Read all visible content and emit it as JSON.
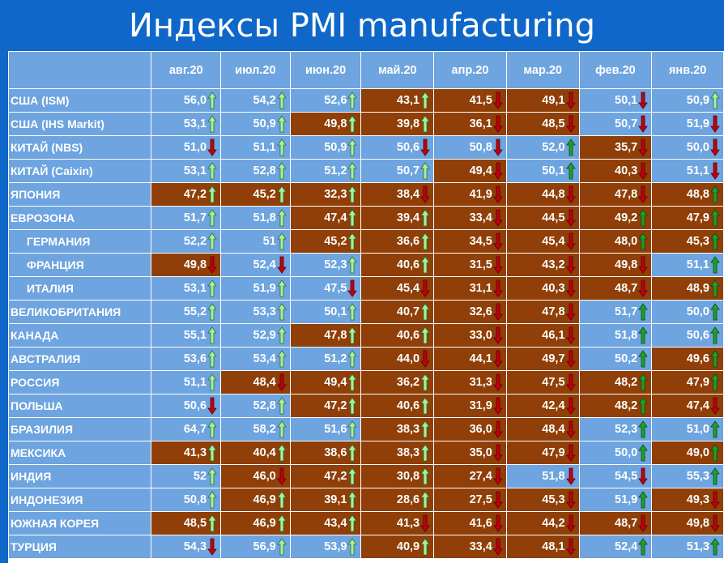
{
  "title": "Индексы PMI manufacturing",
  "columns": [
    "авг.20",
    "июл.20",
    "июн.20",
    "май.20",
    "апр.20",
    "мар.20",
    "фев.20",
    "янв.20"
  ],
  "colors": {
    "header_bg": "#0f67c9",
    "cell_blue": "#6ea4df",
    "cell_brown": "#8f3f07",
    "arrow_up": "#a6f0a0",
    "arrow_down": "#c0000e",
    "arrow_up_dark": "#1fa02a"
  },
  "rows": [
    {
      "country": "США (ISM)",
      "sub": false,
      "cells": [
        {
          "v": "56,0",
          "d": "up",
          "bg": "blue"
        },
        {
          "v": "54,2",
          "d": "up",
          "bg": "blue"
        },
        {
          "v": "52,6",
          "d": "up",
          "bg": "blue"
        },
        {
          "v": "43,1",
          "d": "up",
          "bg": "brown"
        },
        {
          "v": "41,5",
          "d": "down",
          "bg": "brown"
        },
        {
          "v": "49,1",
          "d": "down",
          "bg": "brown"
        },
        {
          "v": "50,1",
          "d": "down",
          "bg": "blue"
        },
        {
          "v": "50,9",
          "d": "up",
          "bg": "blue"
        }
      ]
    },
    {
      "country": "США (IHS Markit)",
      "sub": false,
      "cells": [
        {
          "v": "53,1",
          "d": "up",
          "bg": "blue"
        },
        {
          "v": "50,9",
          "d": "up",
          "bg": "blue"
        },
        {
          "v": "49,8",
          "d": "up",
          "bg": "brown"
        },
        {
          "v": "39,8",
          "d": "up",
          "bg": "brown"
        },
        {
          "v": "36,1",
          "d": "down",
          "bg": "brown"
        },
        {
          "v": "48,5",
          "d": "down",
          "bg": "brown"
        },
        {
          "v": "50,7",
          "d": "down",
          "bg": "blue"
        },
        {
          "v": "51,9",
          "d": "down",
          "bg": "blue"
        }
      ]
    },
    {
      "country": "КИТАЙ (NBS)",
      "sub": false,
      "cells": [
        {
          "v": "51,0",
          "d": "down",
          "bg": "blue"
        },
        {
          "v": "51,1",
          "d": "up",
          "bg": "blue"
        },
        {
          "v": "50,9",
          "d": "up",
          "bg": "blue"
        },
        {
          "v": "50,6",
          "d": "down",
          "bg": "blue"
        },
        {
          "v": "50,8",
          "d": "down",
          "bg": "blue"
        },
        {
          "v": "52,0",
          "d": "upg",
          "bg": "blue"
        },
        {
          "v": "35,7",
          "d": "down",
          "bg": "brown"
        },
        {
          "v": "50,0",
          "d": "down",
          "bg": "blue"
        }
      ]
    },
    {
      "country": "КИТАЙ (Caixin)",
      "sub": false,
      "cells": [
        {
          "v": "53,1",
          "d": "up",
          "bg": "blue"
        },
        {
          "v": "52,8",
          "d": "up",
          "bg": "blue"
        },
        {
          "v": "51,2",
          "d": "up",
          "bg": "blue"
        },
        {
          "v": "50,7",
          "d": "up",
          "bg": "blue"
        },
        {
          "v": "49,4",
          "d": "down",
          "bg": "brown"
        },
        {
          "v": "50,1",
          "d": "upg",
          "bg": "blue"
        },
        {
          "v": "40,3",
          "d": "down",
          "bg": "brown"
        },
        {
          "v": "51,1",
          "d": "down",
          "bg": "blue"
        }
      ]
    },
    {
      "country": "ЯПОНИЯ",
      "sub": false,
      "cells": [
        {
          "v": "47,2",
          "d": "up",
          "bg": "brown"
        },
        {
          "v": "45,2",
          "d": "up",
          "bg": "brown"
        },
        {
          "v": "32,3",
          "d": "up",
          "bg": "brown"
        },
        {
          "v": "38,4",
          "d": "down",
          "bg": "brown"
        },
        {
          "v": "41,9",
          "d": "down",
          "bg": "brown"
        },
        {
          "v": "44,8",
          "d": "down",
          "bg": "brown"
        },
        {
          "v": "47,8",
          "d": "down",
          "bg": "brown"
        },
        {
          "v": "48,8",
          "d": "upg",
          "bg": "brown"
        }
      ]
    },
    {
      "country": "ЕВРОЗОНА",
      "sub": false,
      "cells": [
        {
          "v": "51,7",
          "d": "up",
          "bg": "blue"
        },
        {
          "v": "51,8",
          "d": "up",
          "bg": "blue"
        },
        {
          "v": "47,4",
          "d": "up",
          "bg": "brown"
        },
        {
          "v": "39,4",
          "d": "up",
          "bg": "brown"
        },
        {
          "v": "33,4",
          "d": "down",
          "bg": "brown"
        },
        {
          "v": "44,5",
          "d": "down",
          "bg": "brown"
        },
        {
          "v": "49,2",
          "d": "upg",
          "bg": "brown"
        },
        {
          "v": "47,9",
          "d": "upg",
          "bg": "brown"
        }
      ]
    },
    {
      "country": "ГЕРМАНИЯ",
      "sub": true,
      "cells": [
        {
          "v": "52,2",
          "d": "up",
          "bg": "blue"
        },
        {
          "v": "51",
          "d": "up",
          "bg": "blue"
        },
        {
          "v": "45,2",
          "d": "up",
          "bg": "brown"
        },
        {
          "v": "36,6",
          "d": "up",
          "bg": "brown"
        },
        {
          "v": "34,5",
          "d": "down",
          "bg": "brown"
        },
        {
          "v": "45,4",
          "d": "down",
          "bg": "brown"
        },
        {
          "v": "48,0",
          "d": "upg",
          "bg": "brown"
        },
        {
          "v": "45,3",
          "d": "upg",
          "bg": "brown"
        }
      ]
    },
    {
      "country": "ФРАНЦИЯ",
      "sub": true,
      "cells": [
        {
          "v": "49,8",
          "d": "down",
          "bg": "brown"
        },
        {
          "v": "52,4",
          "d": "down",
          "bg": "blue"
        },
        {
          "v": "52,3",
          "d": "up",
          "bg": "blue"
        },
        {
          "v": "40,6",
          "d": "up",
          "bg": "brown"
        },
        {
          "v": "31,5",
          "d": "down",
          "bg": "brown"
        },
        {
          "v": "43,2",
          "d": "down",
          "bg": "brown"
        },
        {
          "v": "49,8",
          "d": "down",
          "bg": "brown"
        },
        {
          "v": "51,1",
          "d": "upg",
          "bg": "blue"
        }
      ]
    },
    {
      "country": "ИТАЛИЯ",
      "sub": true,
      "cells": [
        {
          "v": "53,1",
          "d": "up",
          "bg": "blue"
        },
        {
          "v": "51,9",
          "d": "up",
          "bg": "blue"
        },
        {
          "v": "47,5",
          "d": "down",
          "bg": "blue"
        },
        {
          "v": "45,4",
          "d": "down",
          "bg": "brown"
        },
        {
          "v": "31,1",
          "d": "down",
          "bg": "brown"
        },
        {
          "v": "40,3",
          "d": "down",
          "bg": "brown"
        },
        {
          "v": "48,7",
          "d": "down",
          "bg": "brown"
        },
        {
          "v": "48,9",
          "d": "upg",
          "bg": "brown"
        }
      ]
    },
    {
      "country": "ВЕЛИКОБРИТАНИЯ",
      "sub": false,
      "cells": [
        {
          "v": "55,2",
          "d": "up",
          "bg": "blue"
        },
        {
          "v": "53,3",
          "d": "up",
          "bg": "blue"
        },
        {
          "v": "50,1",
          "d": "up",
          "bg": "blue"
        },
        {
          "v": "40,7",
          "d": "up",
          "bg": "brown"
        },
        {
          "v": "32,6",
          "d": "down",
          "bg": "brown"
        },
        {
          "v": "47,8",
          "d": "down",
          "bg": "brown"
        },
        {
          "v": "51,7",
          "d": "upg",
          "bg": "blue"
        },
        {
          "v": "50,0",
          "d": "upg",
          "bg": "blue"
        }
      ]
    },
    {
      "country": "КАНАДА",
      "sub": false,
      "cells": [
        {
          "v": "55,1",
          "d": "up",
          "bg": "blue"
        },
        {
          "v": "52,9",
          "d": "up",
          "bg": "blue"
        },
        {
          "v": "47,8",
          "d": "up",
          "bg": "brown"
        },
        {
          "v": "40,6",
          "d": "up",
          "bg": "brown"
        },
        {
          "v": "33,0",
          "d": "down",
          "bg": "brown"
        },
        {
          "v": "46,1",
          "d": "down",
          "bg": "brown"
        },
        {
          "v": "51,8",
          "d": "upg",
          "bg": "blue"
        },
        {
          "v": "50,6",
          "d": "upg",
          "bg": "blue"
        }
      ]
    },
    {
      "country": "АВСТРАЛИЯ",
      "sub": false,
      "cells": [
        {
          "v": "53,6",
          "d": "up",
          "bg": "blue"
        },
        {
          "v": "53,4",
          "d": "up",
          "bg": "blue"
        },
        {
          "v": "51,2",
          "d": "up",
          "bg": "blue"
        },
        {
          "v": "44,0",
          "d": "down",
          "bg": "brown"
        },
        {
          "v": "44,1",
          "d": "down",
          "bg": "brown"
        },
        {
          "v": "49,7",
          "d": "down",
          "bg": "brown"
        },
        {
          "v": "50,2",
          "d": "upg",
          "bg": "blue"
        },
        {
          "v": "49,6",
          "d": "upg",
          "bg": "brown"
        }
      ]
    },
    {
      "country": "РОССИЯ",
      "sub": false,
      "cells": [
        {
          "v": "51,1",
          "d": "up",
          "bg": "blue"
        },
        {
          "v": "48,4",
          "d": "down",
          "bg": "brown"
        },
        {
          "v": "49,4",
          "d": "up",
          "bg": "brown"
        },
        {
          "v": "36,2",
          "d": "up",
          "bg": "brown"
        },
        {
          "v": "31,3",
          "d": "down",
          "bg": "brown"
        },
        {
          "v": "47,5",
          "d": "down",
          "bg": "brown"
        },
        {
          "v": "48,2",
          "d": "upg",
          "bg": "brown"
        },
        {
          "v": "47,9",
          "d": "upg",
          "bg": "brown"
        }
      ]
    },
    {
      "country": "ПОЛЬША",
      "sub": false,
      "cells": [
        {
          "v": "50,6",
          "d": "down",
          "bg": "blue"
        },
        {
          "v": "52,8",
          "d": "up",
          "bg": "blue"
        },
        {
          "v": "47,2",
          "d": "up",
          "bg": "brown"
        },
        {
          "v": "40,6",
          "d": "up",
          "bg": "brown"
        },
        {
          "v": "31,9",
          "d": "down",
          "bg": "brown"
        },
        {
          "v": "42,4",
          "d": "down",
          "bg": "brown"
        },
        {
          "v": "48,2",
          "d": "upg",
          "bg": "brown"
        },
        {
          "v": "47,4",
          "d": "down",
          "bg": "brown"
        }
      ]
    },
    {
      "country": "БРАЗИЛИЯ",
      "sub": false,
      "cells": [
        {
          "v": "64,7",
          "d": "up",
          "bg": "blue"
        },
        {
          "v": "58,2",
          "d": "up",
          "bg": "blue"
        },
        {
          "v": "51,6",
          "d": "up",
          "bg": "blue"
        },
        {
          "v": "38,3",
          "d": "up",
          "bg": "brown"
        },
        {
          "v": "36,0",
          "d": "down",
          "bg": "brown"
        },
        {
          "v": "48,4",
          "d": "down",
          "bg": "brown"
        },
        {
          "v": "52,3",
          "d": "upg",
          "bg": "blue"
        },
        {
          "v": "51,0",
          "d": "upg",
          "bg": "blue"
        }
      ]
    },
    {
      "country": "МЕКСИКА",
      "sub": false,
      "cells": [
        {
          "v": "41,3",
          "d": "up",
          "bg": "brown"
        },
        {
          "v": "40,4",
          "d": "up",
          "bg": "brown"
        },
        {
          "v": "38,6",
          "d": "up",
          "bg": "brown"
        },
        {
          "v": "38,3",
          "d": "up",
          "bg": "brown"
        },
        {
          "v": "35,0",
          "d": "down",
          "bg": "brown"
        },
        {
          "v": "47,9",
          "d": "down",
          "bg": "brown"
        },
        {
          "v": "50,0",
          "d": "upg",
          "bg": "blue"
        },
        {
          "v": "49,0",
          "d": "upg",
          "bg": "brown"
        }
      ]
    },
    {
      "country": "ИНДИЯ",
      "sub": false,
      "cells": [
        {
          "v": "52",
          "d": "up",
          "bg": "blue"
        },
        {
          "v": "46,0",
          "d": "down",
          "bg": "brown"
        },
        {
          "v": "47,2",
          "d": "up",
          "bg": "brown"
        },
        {
          "v": "30,8",
          "d": "up",
          "bg": "brown"
        },
        {
          "v": "27,4",
          "d": "down",
          "bg": "brown"
        },
        {
          "v": "51,8",
          "d": "down",
          "bg": "blue"
        },
        {
          "v": "54,5",
          "d": "down",
          "bg": "blue"
        },
        {
          "v": "55,3",
          "d": "upg",
          "bg": "blue"
        }
      ]
    },
    {
      "country": "ИНДОНЕЗИЯ",
      "sub": false,
      "cells": [
        {
          "v": "50,8",
          "d": "up",
          "bg": "blue"
        },
        {
          "v": "46,9",
          "d": "up",
          "bg": "brown"
        },
        {
          "v": "39,1",
          "d": "up",
          "bg": "brown"
        },
        {
          "v": "28,6",
          "d": "up",
          "bg": "brown"
        },
        {
          "v": "27,5",
          "d": "down",
          "bg": "brown"
        },
        {
          "v": "45,3",
          "d": "down",
          "bg": "brown"
        },
        {
          "v": "51,9",
          "d": "upg",
          "bg": "blue"
        },
        {
          "v": "49,3",
          "d": "down",
          "bg": "brown"
        }
      ]
    },
    {
      "country": "ЮЖНАЯ КОРЕЯ",
      "sub": false,
      "cells": [
        {
          "v": "48,5",
          "d": "up",
          "bg": "brown"
        },
        {
          "v": "46,9",
          "d": "up",
          "bg": "brown"
        },
        {
          "v": "43,4",
          "d": "up",
          "bg": "brown"
        },
        {
          "v": "41,3",
          "d": "down",
          "bg": "brown"
        },
        {
          "v": "41,6",
          "d": "down",
          "bg": "brown"
        },
        {
          "v": "44,2",
          "d": "down",
          "bg": "brown"
        },
        {
          "v": "48,7",
          "d": "down",
          "bg": "brown"
        },
        {
          "v": "49,8",
          "d": "down",
          "bg": "brown"
        }
      ]
    },
    {
      "country": "ТУРЦИЯ",
      "sub": false,
      "cells": [
        {
          "v": "54,3",
          "d": "down",
          "bg": "blue"
        },
        {
          "v": "56,9",
          "d": "up",
          "bg": "blue"
        },
        {
          "v": "53,9",
          "d": "up",
          "bg": "blue"
        },
        {
          "v": "40,9",
          "d": "up",
          "bg": "brown"
        },
        {
          "v": "33,4",
          "d": "down",
          "bg": "brown"
        },
        {
          "v": "48,1",
          "d": "down",
          "bg": "brown"
        },
        {
          "v": "52,4",
          "d": "upg",
          "bg": "blue"
        },
        {
          "v": "51,3",
          "d": "upg",
          "bg": "blue"
        }
      ]
    }
  ]
}
